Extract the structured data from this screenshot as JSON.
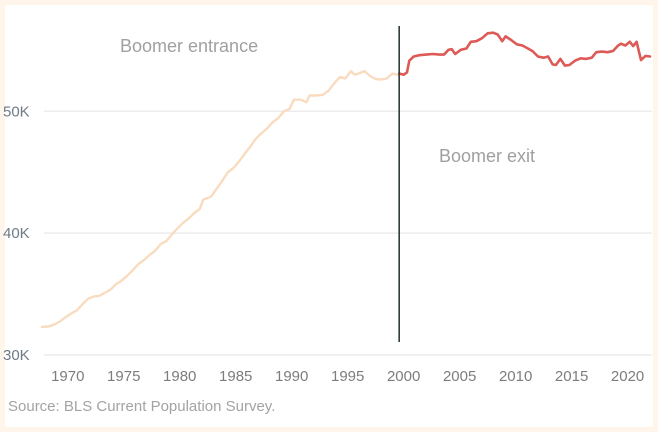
{
  "chart_data": {
    "type": "line",
    "title": "",
    "xlabel": "",
    "ylabel": "",
    "xlim": [
      1967.7,
      2022.0
    ],
    "ylim": [
      30000,
      57000
    ],
    "x_ticks": [
      1970,
      1975,
      1980,
      1985,
      1990,
      1995,
      2000,
      2005,
      2010,
      2015,
      2020
    ],
    "y_ticks": [
      {
        "value": 30000,
        "label": "30K"
      },
      {
        "value": 40000,
        "label": "40K"
      },
      {
        "value": 50000,
        "label": "50K"
      }
    ],
    "grid": "horizontal",
    "colors": {
      "entrance": "#f9dcc0",
      "exit": "#dd5a57",
      "divider": "#2f3b3b",
      "grid": "#ececec"
    },
    "vertical_line": {
      "x": 1999.6
    },
    "series": [
      {
        "segment": "entrance",
        "points": [
          [
            1967.7,
            32300
          ],
          [
            1968.3,
            32350
          ],
          [
            1968.8,
            32500
          ],
          [
            1969.3,
            32750
          ],
          [
            1969.8,
            33100
          ],
          [
            1970.3,
            33400
          ],
          [
            1970.8,
            33650
          ],
          [
            1971.3,
            34150
          ],
          [
            1971.8,
            34600
          ],
          [
            1972.3,
            34800
          ],
          [
            1972.8,
            34850
          ],
          [
            1973.3,
            35100
          ],
          [
            1973.8,
            35350
          ],
          [
            1974.3,
            35800
          ],
          [
            1974.8,
            36100
          ],
          [
            1975.3,
            36500
          ],
          [
            1975.8,
            36950
          ],
          [
            1976.3,
            37450
          ],
          [
            1976.8,
            37800
          ],
          [
            1977.3,
            38200
          ],
          [
            1977.8,
            38550
          ],
          [
            1978.3,
            39100
          ],
          [
            1978.8,
            39350
          ],
          [
            1979.3,
            39900
          ],
          [
            1979.8,
            40400
          ],
          [
            1980.3,
            40850
          ],
          [
            1980.8,
            41200
          ],
          [
            1981.3,
            41650
          ],
          [
            1981.8,
            42000
          ],
          [
            1982.1,
            42750
          ],
          [
            1982.8,
            43000
          ],
          [
            1983.3,
            43650
          ],
          [
            1983.8,
            44300
          ],
          [
            1984.3,
            45000
          ],
          [
            1984.8,
            45350
          ],
          [
            1985.3,
            45900
          ],
          [
            1985.8,
            46500
          ],
          [
            1986.3,
            47100
          ],
          [
            1986.8,
            47750
          ],
          [
            1987.3,
            48200
          ],
          [
            1987.8,
            48600
          ],
          [
            1988.3,
            49100
          ],
          [
            1988.8,
            49450
          ],
          [
            1989.3,
            50000
          ],
          [
            1989.8,
            50200
          ],
          [
            1990.2,
            50950
          ],
          [
            1990.8,
            50950
          ],
          [
            1991.3,
            50750
          ],
          [
            1991.6,
            51300
          ],
          [
            1992.2,
            51300
          ],
          [
            1992.8,
            51350
          ],
          [
            1993.3,
            51700
          ],
          [
            1993.8,
            52300
          ],
          [
            1994.3,
            52800
          ],
          [
            1994.8,
            52700
          ],
          [
            1995.3,
            53300
          ],
          [
            1995.6,
            53000
          ],
          [
            1996.0,
            53100
          ],
          [
            1996.5,
            53300
          ],
          [
            1997.0,
            52900
          ],
          [
            1997.5,
            52650
          ],
          [
            1998.0,
            52600
          ],
          [
            1998.5,
            52700
          ],
          [
            1999.0,
            53100
          ],
          [
            1999.6,
            52950
          ]
        ]
      },
      {
        "segment": "exit",
        "points": [
          [
            1999.6,
            53100
          ],
          [
            2000.0,
            53000
          ],
          [
            2000.3,
            53200
          ],
          [
            2000.5,
            54150
          ],
          [
            2000.9,
            54500
          ],
          [
            2001.4,
            54600
          ],
          [
            2002.0,
            54650
          ],
          [
            2002.6,
            54700
          ],
          [
            2003.2,
            54650
          ],
          [
            2003.6,
            54650
          ],
          [
            2004.0,
            55050
          ],
          [
            2004.3,
            55100
          ],
          [
            2004.6,
            54700
          ],
          [
            2005.1,
            55050
          ],
          [
            2005.6,
            55150
          ],
          [
            2006.0,
            55700
          ],
          [
            2006.5,
            55750
          ],
          [
            2007.0,
            56000
          ],
          [
            2007.5,
            56400
          ],
          [
            2008.0,
            56450
          ],
          [
            2008.4,
            56300
          ],
          [
            2008.8,
            55750
          ],
          [
            2009.1,
            56150
          ],
          [
            2009.6,
            55850
          ],
          [
            2010.1,
            55500
          ],
          [
            2010.6,
            55400
          ],
          [
            2011.0,
            55200
          ],
          [
            2011.5,
            54950
          ],
          [
            2012.0,
            54500
          ],
          [
            2012.5,
            54400
          ],
          [
            2012.9,
            54500
          ],
          [
            2013.3,
            53850
          ],
          [
            2013.6,
            53800
          ],
          [
            2014.0,
            54300
          ],
          [
            2014.4,
            53750
          ],
          [
            2014.8,
            53800
          ],
          [
            2015.3,
            54150
          ],
          [
            2015.8,
            54350
          ],
          [
            2016.3,
            54300
          ],
          [
            2016.8,
            54400
          ],
          [
            2017.2,
            54850
          ],
          [
            2017.7,
            54900
          ],
          [
            2018.2,
            54850
          ],
          [
            2018.7,
            54950
          ],
          [
            2019.1,
            55350
          ],
          [
            2019.4,
            55550
          ],
          [
            2019.8,
            55400
          ],
          [
            2020.2,
            55700
          ],
          [
            2020.5,
            55350
          ],
          [
            2020.8,
            55700
          ],
          [
            2021.2,
            54200
          ],
          [
            2021.6,
            54550
          ],
          [
            2022.0,
            54500
          ]
        ]
      }
    ],
    "annotations": [
      {
        "id": "boomer_entrance",
        "text": "Boomer entrance"
      },
      {
        "id": "boomer_exit",
        "text": "Boomer exit"
      }
    ]
  },
  "footer": {
    "source": "Source: BLS Current Population Survey."
  }
}
